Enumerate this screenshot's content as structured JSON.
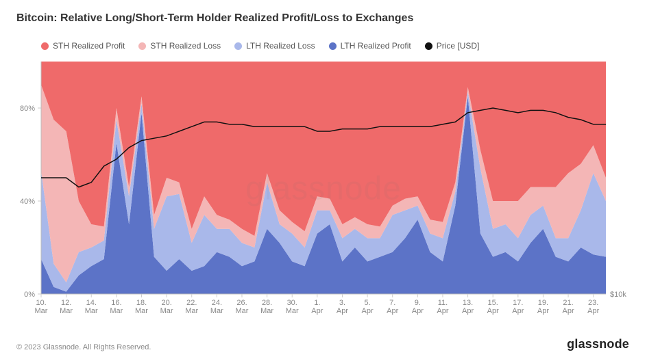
{
  "title": "Bitcoin: Relative Long/Short-Term Holder Realized Profit/Loss to Exchanges",
  "footer_text": "© 2023 Glassnode. All Rights Reserved.",
  "brand": "glassnode",
  "watermark": "glassnode",
  "legend": {
    "items": [
      {
        "label": "STH Realized Profit",
        "color": "#ef6a6a"
      },
      {
        "label": "STH Realized Loss",
        "color": "#f4b6b6"
      },
      {
        "label": "LTH Realized Loss",
        "color": "#a9b8ea"
      },
      {
        "label": "LTH Realized Profit",
        "color": "#5c73c7"
      },
      {
        "label": "Price [USD]",
        "color": "#111111"
      }
    ]
  },
  "chart": {
    "type": "stacked-area-100pct-with-line",
    "background_color": "#ffffff",
    "plot_border_color": "#bbbbbb",
    "font_family": "sans-serif",
    "x_categories": [
      "10. Mar",
      "12. Mar",
      "14. Mar",
      "16. Mar",
      "18. Mar",
      "20. Mar",
      "22. Mar",
      "24. Mar",
      "26. Mar",
      "28. Mar",
      "30. Mar",
      "1. Apr",
      "3. Apr",
      "5. Apr",
      "7. Apr",
      "9. Apr",
      "11. Apr",
      "13. Apr",
      "15. Apr",
      "17. Apr",
      "19. Apr",
      "21. Apr",
      "23. Apr"
    ],
    "y_left": {
      "min": 0,
      "max": 100,
      "ticks": [
        0,
        40,
        80
      ],
      "tick_labels": [
        "0%",
        "40%",
        "80%"
      ],
      "unit": "%"
    },
    "y_right": {
      "label": "$10k"
    },
    "series_stack_order_bottom_to_top": [
      "lth_profit",
      "lth_loss",
      "sth_loss",
      "sth_profit"
    ],
    "series": {
      "lth_profit": {
        "name": "LTH Realized Profit",
        "color": "#5c73c7",
        "values": [
          15,
          3,
          1,
          8,
          12,
          15,
          65,
          30,
          78,
          16,
          10,
          15,
          10,
          12,
          18,
          16,
          12,
          14,
          28,
          22,
          14,
          12,
          26,
          30,
          14,
          20,
          14,
          16,
          18,
          24,
          32,
          18,
          14,
          38,
          85,
          26,
          16,
          18,
          14,
          22,
          28,
          16,
          14,
          20,
          17,
          16
        ]
      },
      "lth_loss": {
        "name": "LTH Realized Loss",
        "color": "#a9b8ea",
        "values": [
          38,
          10,
          4,
          10,
          8,
          8,
          10,
          12,
          4,
          12,
          32,
          28,
          12,
          22,
          10,
          12,
          10,
          6,
          20,
          8,
          12,
          8,
          10,
          6,
          10,
          8,
          10,
          8,
          16,
          12,
          6,
          8,
          10,
          6,
          2,
          28,
          12,
          12,
          10,
          12,
          10,
          8,
          10,
          16,
          35,
          24
        ]
      },
      "sth_loss": {
        "name": "STH Realized Loss",
        "color": "#f4b6b6",
        "values": [
          37,
          62,
          65,
          22,
          10,
          6,
          5,
          4,
          3,
          6,
          8,
          5,
          6,
          8,
          6,
          4,
          6,
          5,
          4,
          6,
          5,
          7,
          6,
          5,
          6,
          5,
          6,
          5,
          4,
          5,
          4,
          6,
          7,
          4,
          2,
          8,
          12,
          10,
          16,
          12,
          8,
          22,
          28,
          20,
          12,
          10
        ]
      },
      "sth_profit": {
        "name": "STH Realized Profit",
        "color": "#ef6a6a",
        "values": [
          10,
          25,
          30,
          60,
          70,
          71,
          20,
          54,
          15,
          66,
          50,
          52,
          72,
          58,
          66,
          68,
          72,
          75,
          48,
          64,
          69,
          73,
          58,
          59,
          70,
          67,
          70,
          71,
          62,
          59,
          58,
          68,
          69,
          52,
          11,
          38,
          60,
          60,
          60,
          54,
          54,
          54,
          48,
          44,
          36,
          50
        ]
      },
      "price_usd": {
        "name": "Price [USD]",
        "color": "#111111",
        "line_width": 1.5,
        "values_pct_of_plot": [
          50,
          50,
          50,
          46,
          48,
          55,
          58,
          63,
          66,
          67,
          68,
          70,
          72,
          74,
          74,
          73,
          73,
          72,
          72,
          72,
          72,
          72,
          70,
          70,
          71,
          71,
          71,
          72,
          72,
          72,
          72,
          72,
          73,
          74,
          78,
          79,
          80,
          79,
          78,
          79,
          79,
          78,
          76,
          75,
          73,
          73
        ]
      }
    },
    "n_points": 46
  }
}
